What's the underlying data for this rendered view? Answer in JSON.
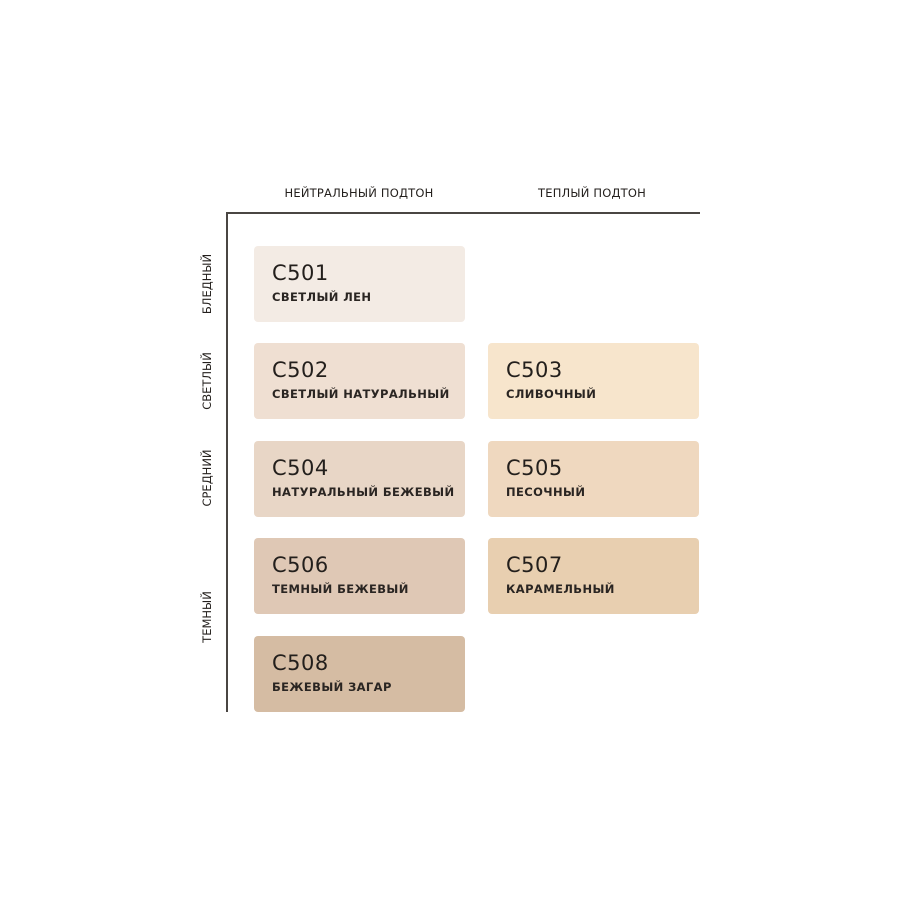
{
  "columns": [
    "НЕЙТРАЛЬНЫЙ ПОДТОН",
    "ТЕПЛЫЙ ПОДТОН"
  ],
  "rows": [
    "БЛЕДНЫЙ",
    "СВЕТЛЫЙ",
    "СРЕДНИЙ",
    "ТЕМНЫЙ"
  ],
  "shades": [
    {
      "code": "C501",
      "name": "СВЕТЛЫЙ ЛЕН",
      "color": "#f3ebe4"
    },
    {
      "code": "C502",
      "name": "СВЕТЛЫЙ НАТУРАЛЬНЫЙ",
      "color": "#efdfd2"
    },
    {
      "code": "C503",
      "name": "СЛИВОЧНЫЙ",
      "color": "#f7e5cc"
    },
    {
      "code": "C504",
      "name": "НАТУРАЛЬНЫЙ БЕЖЕВЫЙ",
      "color": "#e8d6c6"
    },
    {
      "code": "C505",
      "name": "ПЕСОЧНЫЙ",
      "color": "#efd8bf"
    },
    {
      "code": "C506",
      "name": "ТЕМНЫЙ БЕЖЕВЫЙ",
      "color": "#dfc8b5"
    },
    {
      "code": "C507",
      "name": "КАРАМЕЛЬНЫЙ",
      "color": "#e8cfb0"
    },
    {
      "code": "C508",
      "name": "БЕЖЕВЫЙ ЗАГАР",
      "color": "#d5bca3"
    }
  ]
}
